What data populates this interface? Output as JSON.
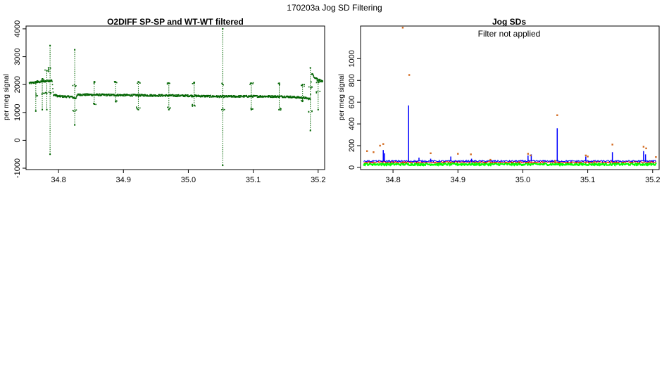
{
  "figure": {
    "title": "170203a   Jog SD Filtering"
  },
  "chart_data": [
    {
      "type": "scatter",
      "title": "O2DIFF SP-SP and WT-WT filtered",
      "xlabel": "",
      "ylabel": "per meg signal",
      "xlim": [
        34.75,
        35.21
      ],
      "ylim": [
        -1050,
        4100
      ],
      "xticks": [
        34.8,
        34.9,
        35.0,
        35.1,
        35.2
      ],
      "xtick_labels": [
        "34.8",
        "34.9",
        "35.0",
        "35.1",
        "35.2"
      ],
      "yticks": [
        -1000,
        0,
        1000,
        2000,
        3000,
        4000
      ],
      "ytick_labels": [
        "-1000",
        "0",
        "1000",
        "2000",
        "3000",
        "4000"
      ],
      "grid": false,
      "series": [
        {
          "color": "#006400",
          "baseline": [
            [
              34.755,
              2050
            ],
            [
              34.79,
              2150
            ],
            [
              34.792,
              1640
            ],
            [
              34.8,
              1580
            ],
            [
              34.82,
              1560
            ],
            [
              34.826,
              1500
            ],
            [
              34.83,
              1640
            ],
            [
              34.9,
              1620
            ],
            [
              35.0,
              1600
            ],
            [
              35.05,
              1570
            ],
            [
              35.1,
              1580
            ],
            [
              35.15,
              1570
            ],
            [
              35.18,
              1520
            ],
            [
              35.188,
              1480
            ],
            [
              35.19,
              2400
            ],
            [
              35.195,
              2250
            ],
            [
              35.207,
              2100
            ]
          ],
          "excursions": [
            {
              "x": 34.765,
              "high": 2100,
              "low": 1050
            },
            {
              "x": 34.775,
              "high": 2200,
              "low": 1100
            },
            {
              "x": 34.782,
              "high": 2500,
              "low": 1100
            },
            {
              "x": 34.787,
              "high": 3400,
              "low": -500
            },
            {
              "x": 34.825,
              "high": 3250,
              "low": 550
            },
            {
              "x": 34.855,
              "high": 2100,
              "low": 1300
            },
            {
              "x": 34.888,
              "high": 2100,
              "low": 1400
            },
            {
              "x": 34.923,
              "high": 2100,
              "low": 1100
            },
            {
              "x": 34.97,
              "high": 2050,
              "low": 1100
            },
            {
              "x": 35.009,
              "high": 2050,
              "low": 1250
            },
            {
              "x": 35.053,
              "high": 4000,
              "low": -900
            },
            {
              "x": 35.097,
              "high": 2050,
              "low": 1100
            },
            {
              "x": 35.14,
              "high": 2050,
              "low": 1100
            },
            {
              "x": 35.176,
              "high": 2000,
              "low": 1400
            },
            {
              "x": 35.188,
              "high": 2600,
              "low": 350
            },
            {
              "x": 35.2,
              "high": 2100,
              "low": 1100
            }
          ]
        }
      ]
    },
    {
      "type": "scatter",
      "title": "Jog SDs",
      "annotation": "Filter not applied",
      "xlabel": "",
      "ylabel": "per meg signal",
      "xlim": [
        34.75,
        35.21
      ],
      "ylim": [
        -20,
        1300
      ],
      "xticks": [
        34.8,
        34.9,
        35.0,
        35.1,
        35.2
      ],
      "xtick_labels": [
        "34.8",
        "34.9",
        "35.0",
        "35.1",
        "35.2"
      ],
      "yticks": [
        0,
        200,
        400,
        600,
        800,
        1000
      ],
      "ytick_labels": [
        "0",
        "200",
        "400",
        "600",
        "800",
        "1000"
      ],
      "grid": false,
      "series": [
        {
          "color": "#00ff00",
          "level": 25,
          "spread": 20
        },
        {
          "color": "#ff0000",
          "level": 45,
          "spread": 15
        },
        {
          "color": "#0000ff",
          "level": 55,
          "spread": 15,
          "spikes": [
            [
              34.785,
              160
            ],
            [
              34.787,
              130
            ],
            [
              34.824,
              570
            ],
            [
              34.84,
              90
            ],
            [
              34.858,
              80
            ],
            [
              34.889,
              100
            ],
            [
              34.921,
              80
            ],
            [
              35.008,
              110
            ],
            [
              35.013,
              120
            ],
            [
              35.053,
              360
            ],
            [
              35.097,
              100
            ],
            [
              35.138,
              140
            ],
            [
              35.186,
              150
            ],
            [
              35.189,
              120
            ]
          ]
        },
        {
          "color": "#d2691e",
          "points": [
            [
              34.815,
              1285
            ],
            [
              34.825,
              850
            ],
            [
              34.785,
              215
            ],
            [
              34.78,
              200
            ],
            [
              34.76,
              150
            ],
            [
              34.77,
              140
            ],
            [
              34.858,
              130
            ],
            [
              34.9,
              125
            ],
            [
              34.92,
              120
            ],
            [
              35.008,
              125
            ],
            [
              35.012,
              110
            ],
            [
              35.053,
              480
            ],
            [
              35.097,
              110
            ],
            [
              35.1,
              100
            ],
            [
              35.138,
              210
            ],
            [
              35.186,
              190
            ],
            [
              35.19,
              175
            ],
            [
              35.205,
              95
            ],
            [
              34.95,
              70
            ],
            [
              35.05,
              60
            ]
          ]
        }
      ]
    }
  ]
}
